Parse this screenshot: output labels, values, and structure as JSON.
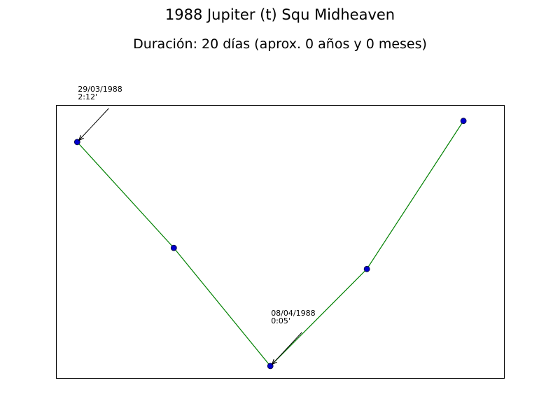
{
  "chart_data": {
    "type": "line",
    "title": "1988 Jupiter (t) Squ Midheaven",
    "subtitle": "Duración: 20 días (aprox. 0 años y 0 meses)",
    "xlabel": "",
    "ylabel": "",
    "x": [
      0,
      5,
      10,
      15,
      20
    ],
    "y": [
      2.2,
      1.2,
      0.083,
      1.0,
      2.4
    ],
    "xlim": [
      -1.1,
      22.1
    ],
    "ylim": [
      2.55,
      -0.03
    ],
    "grid": false,
    "line_color": "#008000",
    "marker_color": "#0000cc",
    "annotations": [
      {
        "point_index": 0,
        "date": "29/03/1988",
        "value": "2:12'"
      },
      {
        "point_index": 2,
        "date": "08/04/1988",
        "value": "0:05'"
      }
    ]
  }
}
